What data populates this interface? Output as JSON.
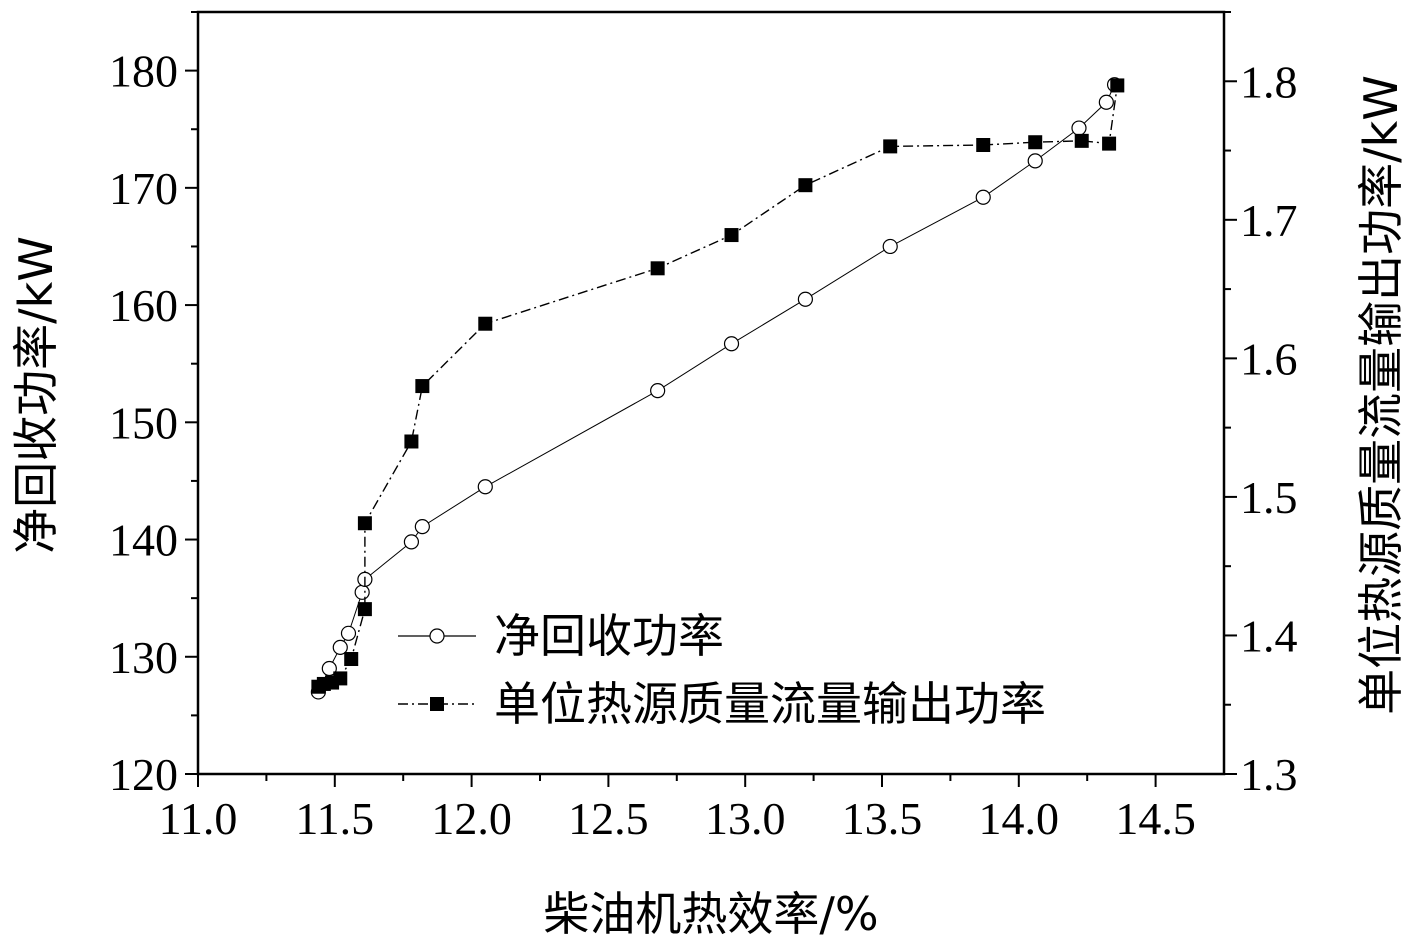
{
  "chart_data": {
    "type": "line",
    "xlabel": "柴油机热效率/%",
    "ylabel_left": "净回收功率/kW",
    "ylabel_right": "单位热源质量流量输出功率/kW",
    "xlim": [
      11.0,
      14.75
    ],
    "ylim_left": [
      120,
      185
    ],
    "ylim_right": [
      1.3,
      1.85
    ],
    "x_ticks": [
      "11.0",
      "11.5",
      "12.0",
      "12.5",
      "13.0",
      "13.5",
      "14.0",
      "14.5"
    ],
    "y_ticks_left": [
      "120",
      "130",
      "140",
      "150",
      "160",
      "170",
      "180"
    ],
    "y_ticks_right": [
      "1.3",
      "1.4",
      "1.5",
      "1.6",
      "1.7",
      "1.8"
    ],
    "grid": false,
    "legend_position": "lower-right",
    "series": [
      {
        "name": "净回收功率",
        "axis": "left",
        "marker": "open-circle",
        "line": "solid",
        "x": [
          11.44,
          11.48,
          11.52,
          11.55,
          11.6,
          11.61,
          11.78,
          11.82,
          12.05,
          12.68,
          12.95,
          13.22,
          13.53,
          13.87,
          14.06,
          14.22,
          14.32,
          14.35
        ],
        "y": [
          127.0,
          129.0,
          130.8,
          132.0,
          135.5,
          136.6,
          139.8,
          141.1,
          144.5,
          152.7,
          156.7,
          160.5,
          165.0,
          169.2,
          172.3,
          175.1,
          177.3,
          178.8
        ]
      },
      {
        "name": "单位热源质量流量输出功率",
        "axis": "right",
        "marker": "filled-square",
        "line": "dash-dot",
        "x": [
          11.44,
          11.46,
          11.49,
          11.52,
          11.56,
          11.61,
          11.61,
          11.78,
          11.82,
          12.05,
          12.68,
          12.95,
          13.22,
          13.53,
          13.87,
          14.06,
          14.23,
          14.33,
          14.36
        ],
        "y": [
          1.363,
          1.365,
          1.366,
          1.369,
          1.383,
          1.419,
          1.481,
          1.54,
          1.58,
          1.625,
          1.665,
          1.689,
          1.725,
          1.753,
          1.754,
          1.756,
          1.757,
          1.755,
          1.797
        ]
      }
    ]
  }
}
